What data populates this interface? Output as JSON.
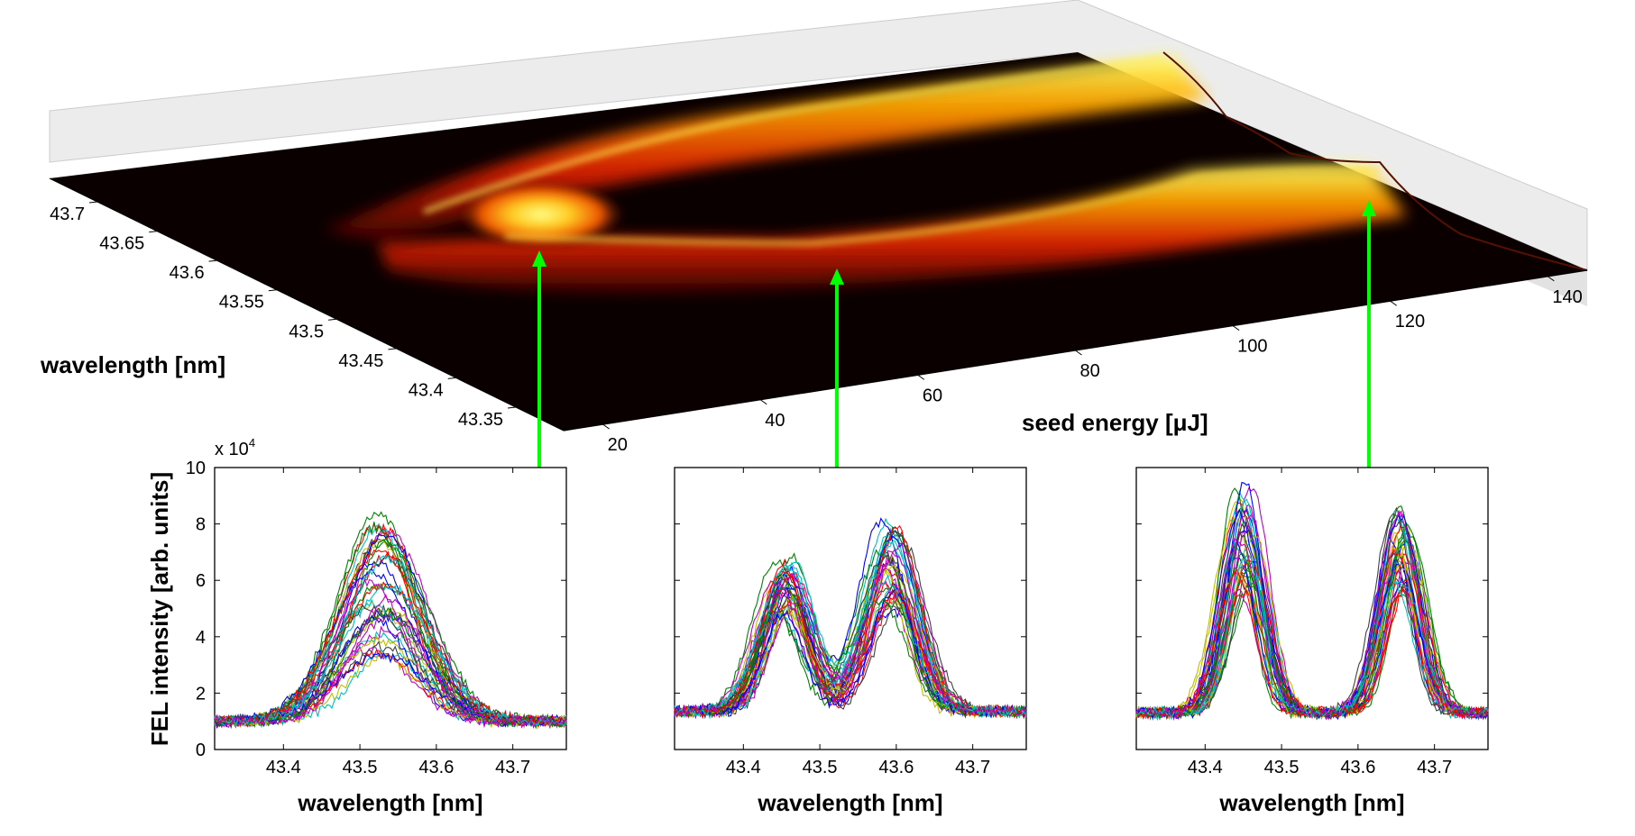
{
  "chart_data": [
    {
      "type": "surface",
      "title": "",
      "xlabel": "seed energy [μJ]",
      "ylabel": "wavelength [nm]",
      "x_ticks": [
        "20",
        "40",
        "60",
        "80",
        "100",
        "120",
        "140"
      ],
      "y_ticks": [
        "43.35",
        "43.4",
        "43.45",
        "43.5",
        "43.55",
        "43.6",
        "43.65",
        "43.7"
      ],
      "xlim": [
        15,
        145
      ],
      "ylim": [
        43.31,
        43.74
      ],
      "colormap": "hot",
      "ridges": [
        {
          "seed_energy": [
            15,
            40,
            60,
            80,
            100,
            120,
            140
          ],
          "wavelength": [
            43.52,
            43.53,
            43.6,
            43.62,
            43.64,
            43.65,
            43.66
          ]
        },
        {
          "seed_energy": [
            15,
            40,
            60,
            80,
            100,
            120,
            140
          ],
          "wavelength": [
            43.52,
            43.51,
            43.47,
            43.46,
            43.455,
            43.45,
            43.45
          ]
        }
      ],
      "markers": [
        {
          "seed_energy": 30,
          "panel": 1
        },
        {
          "seed_energy": 60,
          "panel": 2
        },
        {
          "seed_energy": 120,
          "panel": 3
        }
      ],
      "marker_color": "#00ff00"
    },
    {
      "type": "line",
      "panel": 1,
      "xlabel": "wavelength [nm]",
      "ylabel": "FEL intensity [arb. units]",
      "xlim": [
        43.31,
        43.77
      ],
      "ylim": [
        0,
        10
      ],
      "y_multiplier": "x 10",
      "y_multiplier_exponent": "4",
      "x_ticks": [
        "43.4",
        "43.5",
        "43.6",
        "43.7"
      ],
      "y_ticks": [
        "0",
        "2",
        "4",
        "6",
        "8",
        "10"
      ],
      "n_shots": 40,
      "baseline": 1.0,
      "peaks": [
        {
          "center": 43.525,
          "width": 0.052,
          "height_range": [
            2.3,
            7.4
          ]
        }
      ]
    },
    {
      "type": "line",
      "panel": 2,
      "xlabel": "wavelength [nm]",
      "xlim": [
        43.31,
        43.77
      ],
      "ylim": [
        0,
        10
      ],
      "x_ticks": [
        "43.4",
        "43.5",
        "43.6",
        "43.7"
      ],
      "n_shots": 40,
      "baseline": 1.35,
      "peaks": [
        {
          "center": 43.455,
          "width": 0.03,
          "height_range": [
            3.4,
            5.5
          ]
        },
        {
          "center": 43.59,
          "width": 0.032,
          "height_range": [
            3.6,
            6.8
          ]
        }
      ]
    },
    {
      "type": "line",
      "panel": 3,
      "xlabel": "wavelength [nm]",
      "xlim": [
        43.31,
        43.77
      ],
      "ylim": [
        0,
        10
      ],
      "x_ticks": [
        "43.4",
        "43.5",
        "43.6",
        "43.7"
      ],
      "n_shots": 40,
      "baseline": 1.3,
      "peaks": [
        {
          "center": 43.45,
          "width": 0.024,
          "height_range": [
            4.2,
            8.2
          ]
        },
        {
          "center": 43.655,
          "width": 0.024,
          "height_range": [
            4.3,
            7.3
          ]
        }
      ]
    }
  ],
  "colors": {
    "series": [
      "#0000ff",
      "#008000",
      "#ff0000",
      "#00bfbf",
      "#bf00bf",
      "#bfbf00",
      "#404040"
    ],
    "marker": "#00ff00",
    "back_wall": "#ececec"
  }
}
